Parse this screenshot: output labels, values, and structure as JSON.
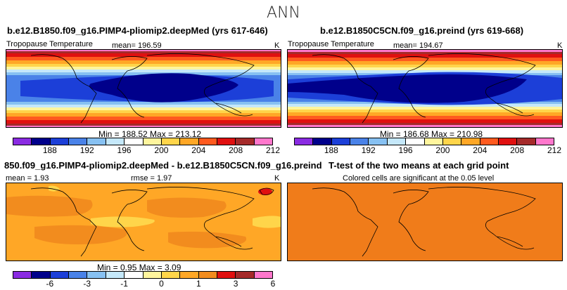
{
  "main_title": "ANN",
  "chart_data": [
    {
      "type": "heatmap",
      "title": "b.e12.B1850.f09_g16.PIMP4-pliomip2.deepMed (yrs 617-646)",
      "left_label": "Tropopause Temperature",
      "mean_label": "mean= 196.59",
      "mean": 196.59,
      "units": "K",
      "min_max_label": "Min = 188.52 Max = 213.12",
      "min": 188.52,
      "max": 213.12,
      "colorbar_levels": [
        188,
        192,
        196,
        200,
        204,
        208,
        212
      ],
      "colorbar_tick_labels": [
        "188",
        "192",
        "196",
        "200",
        "204",
        "208",
        "212"
      ]
    },
    {
      "type": "heatmap",
      "title": "b.e12.B1850C5CN.f09_g16.preind (yrs 619-668)",
      "left_label": "Tropopause Temperature",
      "mean_label": "mean= 194.67",
      "mean": 194.67,
      "units": "K",
      "min_max_label": "Min = 186.68 Max = 210.98",
      "min": 186.68,
      "max": 210.98,
      "colorbar_levels": [
        188,
        192,
        196,
        200,
        204,
        208,
        212
      ],
      "colorbar_tick_labels": [
        "188",
        "192",
        "196",
        "200",
        "204",
        "208",
        "212"
      ]
    },
    {
      "type": "heatmap",
      "title": "850.f09_g16.PIMP4-pliomip2.deepMed - b.e12.B1850C5CN.f09_g16.preind",
      "mean_label": "mean =    1.93",
      "mean": 1.93,
      "rmse_label": "rmse =    1.97",
      "rmse": 1.97,
      "units": "K",
      "min_max_label": "Min =    0.95 Max =    3.09",
      "min": 0.95,
      "max": 3.09,
      "colorbar_tick_labels": [
        "-6",
        "-3",
        "-1",
        "0",
        "1",
        "3",
        "6"
      ]
    },
    {
      "type": "heatmap",
      "title": "T-test of the two means at each grid point",
      "subtitle": "Colored cells are significant at the 0.05 level"
    }
  ],
  "colorbar_colors": [
    "#8a2be2",
    "#00008b",
    "#1c3fd8",
    "#4a82e8",
    "#87c1f2",
    "#c5e8fa",
    "#ffffff",
    "#fff59d",
    "#ffd54a",
    "#ffa726",
    "#ff5a1f",
    "#e01010",
    "#a52a2a",
    "#ff77cc"
  ],
  "diff_colorbar_colors": [
    "#8a2be2",
    "#00008b",
    "#1c3fd8",
    "#4a82e8",
    "#87c1f2",
    "#c5e8fa",
    "#ffffff",
    "#fff59d",
    "#ffd54a",
    "#ffa726",
    "#f28c1e",
    "#e01010",
    "#a52a2a",
    "#ff77cc"
  ]
}
